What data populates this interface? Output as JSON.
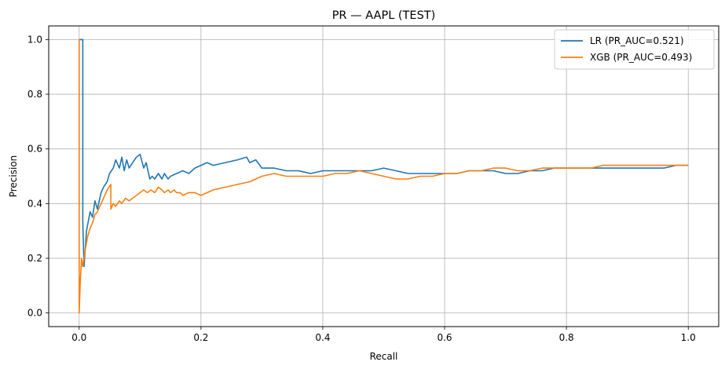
{
  "chart_data": {
    "type": "line",
    "title": "PR — AAPL (TEST)",
    "xlabel": "Recall",
    "ylabel": "Precision",
    "xlim": [
      -0.05,
      1.05
    ],
    "ylim": [
      -0.05,
      1.05
    ],
    "xticks": [
      0.0,
      0.2,
      0.4,
      0.6,
      0.8,
      1.0
    ],
    "xtick_labels": [
      "0.0",
      "0.2",
      "0.4",
      "0.6",
      "0.8",
      "1.0"
    ],
    "yticks": [
      0.0,
      0.2,
      0.4,
      0.6,
      0.8,
      1.0
    ],
    "ytick_labels": [
      "0.0",
      "0.2",
      "0.4",
      "0.6",
      "0.8",
      "1.0"
    ],
    "grid": true,
    "legend_position": "top-right",
    "series": [
      {
        "name": "LR (PR_AUC=0.521)",
        "color": "#1f77b4",
        "x": [
          0.0,
          0.006,
          0.006,
          0.008,
          0.012,
          0.018,
          0.022,
          0.026,
          0.03,
          0.036,
          0.04,
          0.046,
          0.05,
          0.056,
          0.06,
          0.066,
          0.07,
          0.074,
          0.078,
          0.082,
          0.088,
          0.094,
          0.1,
          0.106,
          0.11,
          0.116,
          0.12,
          0.124,
          0.13,
          0.136,
          0.14,
          0.146,
          0.15,
          0.16,
          0.17,
          0.18,
          0.19,
          0.2,
          0.21,
          0.22,
          0.24,
          0.26,
          0.275,
          0.28,
          0.29,
          0.3,
          0.32,
          0.34,
          0.36,
          0.38,
          0.4,
          0.42,
          0.44,
          0.46,
          0.48,
          0.5,
          0.52,
          0.54,
          0.56,
          0.58,
          0.6,
          0.62,
          0.64,
          0.66,
          0.68,
          0.7,
          0.72,
          0.74,
          0.76,
          0.78,
          0.8,
          0.82,
          0.84,
          0.86,
          0.88,
          0.9,
          0.92,
          0.94,
          0.96,
          0.98,
          1.0
        ],
        "y": [
          1.0,
          1.0,
          0.33,
          0.17,
          0.3,
          0.37,
          0.35,
          0.41,
          0.38,
          0.44,
          0.46,
          0.48,
          0.51,
          0.53,
          0.56,
          0.53,
          0.57,
          0.52,
          0.56,
          0.53,
          0.55,
          0.57,
          0.58,
          0.53,
          0.55,
          0.49,
          0.5,
          0.49,
          0.51,
          0.49,
          0.51,
          0.49,
          0.5,
          0.51,
          0.52,
          0.51,
          0.53,
          0.54,
          0.55,
          0.54,
          0.55,
          0.56,
          0.57,
          0.55,
          0.56,
          0.53,
          0.53,
          0.52,
          0.52,
          0.51,
          0.52,
          0.52,
          0.52,
          0.52,
          0.52,
          0.53,
          0.52,
          0.51,
          0.51,
          0.51,
          0.51,
          0.51,
          0.52,
          0.52,
          0.52,
          0.51,
          0.51,
          0.52,
          0.52,
          0.53,
          0.53,
          0.53,
          0.53,
          0.53,
          0.53,
          0.53,
          0.53,
          0.53,
          0.53,
          0.54,
          0.54
        ]
      },
      {
        "name": "XGB (PR_AUC=0.493)",
        "color": "#ff7f0e",
        "x": [
          0.0,
          0.0,
          0.002,
          0.004,
          0.006,
          0.01,
          0.014,
          0.018,
          0.022,
          0.026,
          0.03,
          0.034,
          0.04,
          0.046,
          0.052,
          0.052,
          0.056,
          0.06,
          0.066,
          0.07,
          0.076,
          0.082,
          0.088,
          0.094,
          0.1,
          0.106,
          0.112,
          0.118,
          0.124,
          0.13,
          0.136,
          0.14,
          0.146,
          0.15,
          0.156,
          0.16,
          0.166,
          0.17,
          0.18,
          0.19,
          0.2,
          0.22,
          0.24,
          0.26,
          0.28,
          0.3,
          0.32,
          0.34,
          0.36,
          0.38,
          0.4,
          0.42,
          0.44,
          0.46,
          0.48,
          0.5,
          0.52,
          0.54,
          0.56,
          0.58,
          0.6,
          0.62,
          0.64,
          0.66,
          0.68,
          0.7,
          0.72,
          0.74,
          0.76,
          0.78,
          0.8,
          0.82,
          0.84,
          0.86,
          0.88,
          0.9,
          0.92,
          0.94,
          0.96,
          0.98,
          1.0
        ],
        "y": [
          1.0,
          0.0,
          0.12,
          0.2,
          0.17,
          0.23,
          0.28,
          0.31,
          0.33,
          0.36,
          0.37,
          0.39,
          0.42,
          0.45,
          0.47,
          0.38,
          0.4,
          0.39,
          0.41,
          0.4,
          0.42,
          0.41,
          0.42,
          0.43,
          0.44,
          0.45,
          0.44,
          0.45,
          0.44,
          0.46,
          0.45,
          0.44,
          0.45,
          0.44,
          0.45,
          0.44,
          0.44,
          0.43,
          0.44,
          0.44,
          0.43,
          0.45,
          0.46,
          0.47,
          0.48,
          0.5,
          0.51,
          0.5,
          0.5,
          0.5,
          0.5,
          0.51,
          0.51,
          0.52,
          0.51,
          0.5,
          0.49,
          0.49,
          0.5,
          0.5,
          0.51,
          0.51,
          0.52,
          0.52,
          0.53,
          0.53,
          0.52,
          0.52,
          0.53,
          0.53,
          0.53,
          0.53,
          0.53,
          0.54,
          0.54,
          0.54,
          0.54,
          0.54,
          0.54,
          0.54,
          0.54
        ]
      }
    ]
  }
}
